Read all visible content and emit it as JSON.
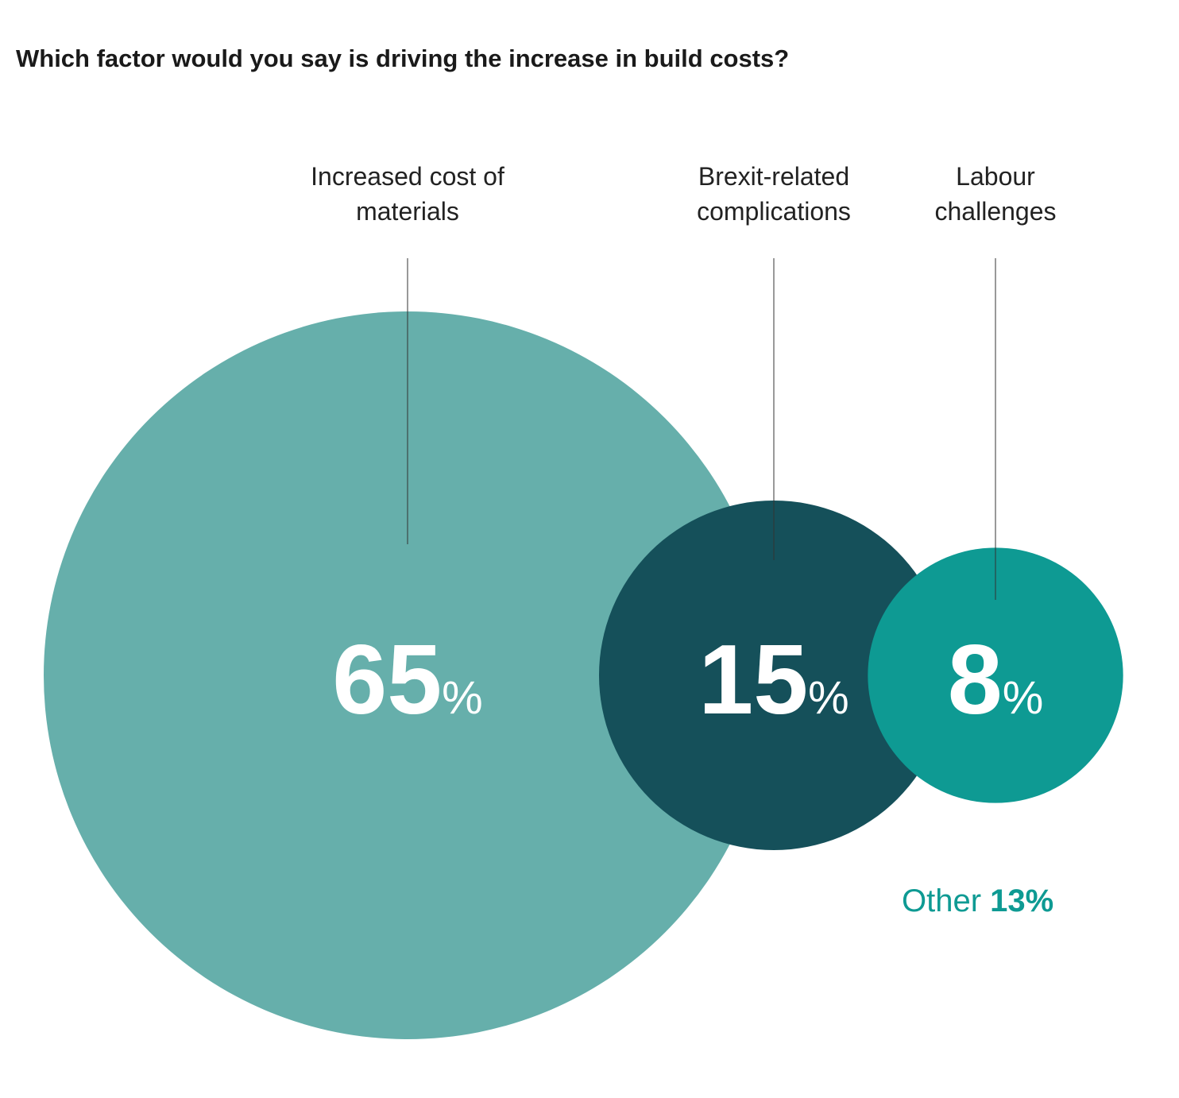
{
  "chart_data": {
    "type": "bubble",
    "title": "Which factor would you say is driving the increase in build costs?",
    "categories": [
      "Increased cost of materials",
      "Brexit-related complications",
      "Labour challenges"
    ],
    "values": [
      65,
      15,
      8
    ],
    "value_labels": [
      "65%",
      "15%",
      "8%"
    ],
    "colors": [
      "#66afab",
      "#15505a",
      "#0e9a93"
    ],
    "annotation": {
      "label": "Other",
      "value": 13,
      "value_label": "13%"
    }
  }
}
